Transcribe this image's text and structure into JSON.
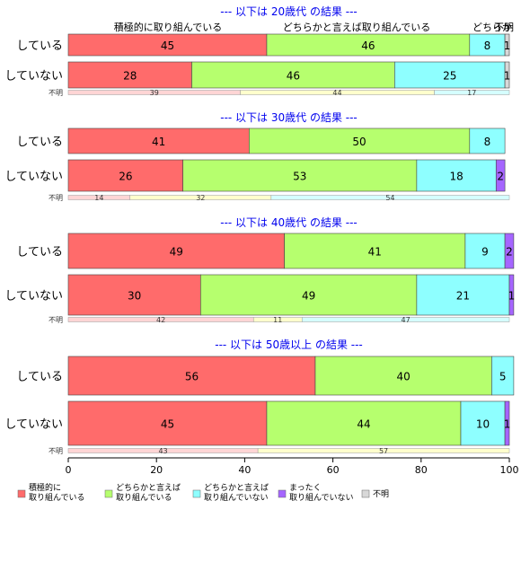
{
  "chart_data": {
    "type": "bar",
    "orientation": "horizontal",
    "stacked": true,
    "xlim": [
      0,
      100
    ],
    "xticks": [
      0,
      20,
      40,
      60,
      80,
      100
    ],
    "categories": [
      "積極的に取り組んでいる",
      "どちらかと言えば取り組んでいる",
      "どちらかと言えば取り組んでいない",
      "まったく取り組んでいない",
      "不明"
    ],
    "header_labels": [
      "積極的に取り組んでいる",
      "どちらかと言えば取り組んでいる",
      "どちらか",
      "不明"
    ],
    "colors": [
      "#ff6b6b",
      "#b6ff6e",
      "#8effff",
      "#a565ff",
      "#d8d8d8"
    ],
    "legend": [
      {
        "line1": "積極的に",
        "line2": "取り組んでいる"
      },
      {
        "line1": "どちらかと言えば",
        "line2": "取り組んでいる"
      },
      {
        "line1": "どちらかと言えば",
        "line2": "取り組んでいない"
      },
      {
        "line1": "まったく",
        "line2": "取り組んでいない"
      },
      {
        "line1": "不明",
        "line2": ""
      }
    ],
    "unknown_label": "不明",
    "unknown_colors": [
      "#ffd5d5",
      "#ffffcc",
      "#d5ffff"
    ],
    "panels": [
      {
        "title": "--- 以下は 20歳代 の結果 ---",
        "rows": [
          {
            "label": "している",
            "values": [
              45,
              46,
              8,
              0,
              1
            ]
          },
          {
            "label": "していない",
            "values": [
              28,
              46,
              25,
              0,
              1
            ]
          }
        ],
        "unknown": [
          39,
          44,
          17
        ]
      },
      {
        "title": "--- 以下は 30歳代 の結果 ---",
        "rows": [
          {
            "label": "している",
            "values": [
              41,
              50,
              8,
              0,
              0
            ]
          },
          {
            "label": "していない",
            "values": [
              26,
              53,
              18,
              2,
              0
            ]
          }
        ],
        "unknown": [
          14,
          32,
          54
        ]
      },
      {
        "title": "--- 以下は 40歳代 の結果 ---",
        "rows": [
          {
            "label": "している",
            "values": [
              49,
              41,
              9,
              2,
              0
            ]
          },
          {
            "label": "していない",
            "values": [
              30,
              49,
              21,
              1,
              0
            ]
          }
        ],
        "unknown": [
          42,
          11,
          47
        ]
      },
      {
        "title": "--- 以下は 50歳以上 の結果 ---",
        "rows": [
          {
            "label": "している",
            "values": [
              56,
              40,
              5,
              0,
              0
            ]
          },
          {
            "label": "していない",
            "values": [
              45,
              44,
              10,
              1,
              0
            ]
          }
        ],
        "unknown": [
          43,
          57
        ]
      }
    ]
  }
}
